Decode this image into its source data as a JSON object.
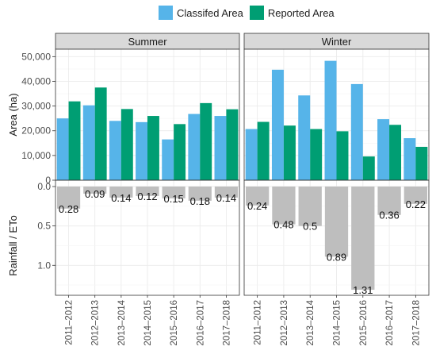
{
  "chart_data": {
    "type": "bar",
    "legend": {
      "placement": "top",
      "entries": [
        {
          "label": "Classifed Area",
          "color": "#56B4E9"
        },
        {
          "label": "Reported Area",
          "color": "#009E73"
        }
      ]
    },
    "categories": [
      "2011–2012",
      "2012–2013",
      "2013–2014",
      "2014–2015",
      "2015–2016",
      "2016–2017",
      "2017–2018"
    ],
    "facets": [
      "Summer",
      "Winter"
    ],
    "top_panel": {
      "ylabel": "Area (ha)",
      "ylim": [
        0,
        53000
      ],
      "yticks": [
        "0",
        "10,000",
        "20,000",
        "30,000",
        "40,000",
        "50,000"
      ],
      "series": [
        {
          "name": "Classifed Area",
          "color": "#56B4E9",
          "Summer": [
            25000,
            30300,
            24000,
            23500,
            16500,
            26800,
            26000
          ],
          "Winter": [
            20700,
            44700,
            34300,
            48300,
            38900,
            24700,
            17000
          ]
        },
        {
          "name": "Reported Area",
          "color": "#009E73",
          "Summer": [
            31900,
            37500,
            28800,
            26000,
            22700,
            31200,
            28700
          ],
          "Winter": [
            23600,
            22100,
            20700,
            19800,
            9600,
            22400,
            13500
          ]
        }
      ]
    },
    "bottom_panel": {
      "ylabel": "Rainfall / ETo",
      "ylim": [
        0,
        1.38
      ],
      "reversed": true,
      "yticks": [
        "0.0",
        "0.5",
        "1.0"
      ],
      "bar_color": "#BEBEBE",
      "Summer": [
        0.28,
        0.09,
        0.14,
        0.12,
        0.15,
        0.18,
        0.14
      ],
      "Winter": [
        0.24,
        0.48,
        0.5,
        0.89,
        1.31,
        0.36,
        0.22
      ],
      "labels_summer": [
        "0.28",
        "0.09",
        "0.14",
        "0.12",
        "0.15",
        "0.18",
        "0.14"
      ],
      "labels_winter": [
        "0.24",
        "0.48",
        "0.5",
        "0.89",
        "1.31",
        "0.36",
        "0.22"
      ]
    },
    "grid": true
  }
}
